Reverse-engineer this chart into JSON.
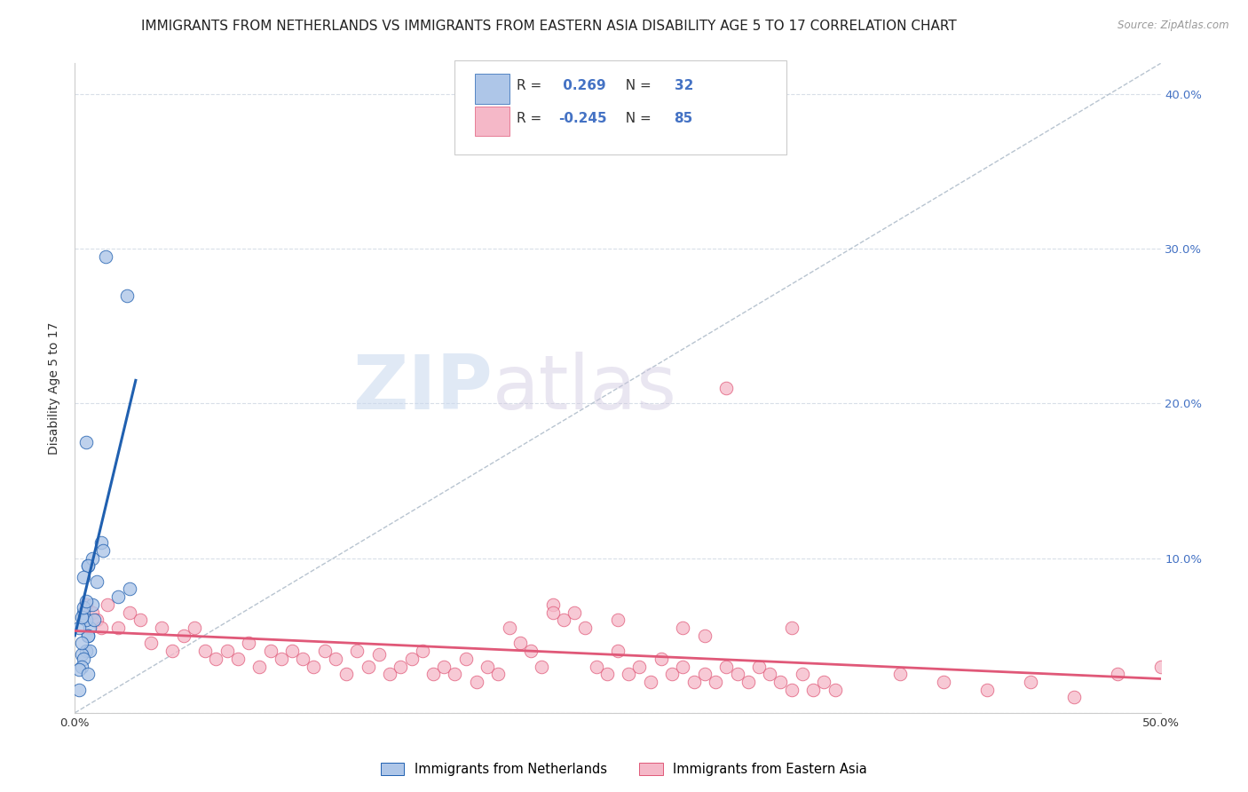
{
  "title": "IMMIGRANTS FROM NETHERLANDS VS IMMIGRANTS FROM EASTERN ASIA DISABILITY AGE 5 TO 17 CORRELATION CHART",
  "source": "Source: ZipAtlas.com",
  "ylabel": "Disability Age 5 to 17",
  "xlim": [
    0.0,
    0.5
  ],
  "ylim": [
    0.0,
    0.42
  ],
  "x_ticks": [
    0.0,
    0.1,
    0.2,
    0.3,
    0.4,
    0.5
  ],
  "x_tick_labels": [
    "0.0%",
    "",
    "",
    "",
    "",
    "50.0%"
  ],
  "y_ticks": [
    0.0,
    0.1,
    0.2,
    0.3,
    0.4
  ],
  "y_tick_labels": [
    "",
    "10.0%",
    "20.0%",
    "30.0%",
    "40.0%"
  ],
  "R_blue": 0.269,
  "N_blue": 32,
  "R_pink": -0.245,
  "N_pink": 85,
  "blue_color": "#aec6e8",
  "blue_line_color": "#2060b0",
  "pink_color": "#f5b8c8",
  "pink_line_color": "#e05878",
  "watermark_zip": "ZIP",
  "watermark_atlas": "atlas",
  "legend_blue_label": "Immigrants from Netherlands",
  "legend_pink_label": "Immigrants from Eastern Asia",
  "blue_scatter_x": [
    0.014,
    0.024,
    0.005,
    0.006,
    0.008,
    0.01,
    0.012,
    0.006,
    0.007,
    0.004,
    0.005,
    0.006,
    0.02,
    0.025,
    0.008,
    0.009,
    0.006,
    0.005,
    0.007,
    0.003,
    0.004,
    0.003,
    0.002,
    0.006,
    0.003,
    0.002,
    0.003,
    0.004,
    0.005,
    0.013,
    0.002,
    0.004
  ],
  "blue_scatter_y": [
    0.295,
    0.27,
    0.175,
    0.095,
    0.1,
    0.085,
    0.11,
    0.095,
    0.055,
    0.065,
    0.06,
    0.05,
    0.075,
    0.08,
    0.07,
    0.06,
    0.05,
    0.04,
    0.04,
    0.038,
    0.035,
    0.03,
    0.028,
    0.025,
    0.045,
    0.055,
    0.062,
    0.068,
    0.072,
    0.105,
    0.015,
    0.088
  ],
  "pink_scatter_x": [
    0.005,
    0.008,
    0.01,
    0.012,
    0.015,
    0.02,
    0.025,
    0.03,
    0.035,
    0.04,
    0.045,
    0.05,
    0.055,
    0.06,
    0.065,
    0.07,
    0.075,
    0.08,
    0.085,
    0.09,
    0.095,
    0.1,
    0.105,
    0.11,
    0.115,
    0.12,
    0.125,
    0.13,
    0.135,
    0.14,
    0.145,
    0.15,
    0.155,
    0.16,
    0.165,
    0.17,
    0.175,
    0.18,
    0.185,
    0.19,
    0.195,
    0.2,
    0.205,
    0.21,
    0.215,
    0.22,
    0.225,
    0.23,
    0.235,
    0.24,
    0.245,
    0.25,
    0.255,
    0.26,
    0.265,
    0.27,
    0.275,
    0.28,
    0.285,
    0.29,
    0.295,
    0.3,
    0.305,
    0.31,
    0.315,
    0.32,
    0.325,
    0.33,
    0.335,
    0.34,
    0.345,
    0.35,
    0.38,
    0.4,
    0.42,
    0.44,
    0.46,
    0.48,
    0.5,
    0.3,
    0.25,
    0.28,
    0.33,
    0.29,
    0.22
  ],
  "pink_scatter_y": [
    0.07,
    0.065,
    0.06,
    0.055,
    0.07,
    0.055,
    0.065,
    0.06,
    0.045,
    0.055,
    0.04,
    0.05,
    0.055,
    0.04,
    0.035,
    0.04,
    0.035,
    0.045,
    0.03,
    0.04,
    0.035,
    0.04,
    0.035,
    0.03,
    0.04,
    0.035,
    0.025,
    0.04,
    0.03,
    0.038,
    0.025,
    0.03,
    0.035,
    0.04,
    0.025,
    0.03,
    0.025,
    0.035,
    0.02,
    0.03,
    0.025,
    0.055,
    0.045,
    0.04,
    0.03,
    0.07,
    0.06,
    0.065,
    0.055,
    0.03,
    0.025,
    0.04,
    0.025,
    0.03,
    0.02,
    0.035,
    0.025,
    0.03,
    0.02,
    0.025,
    0.02,
    0.03,
    0.025,
    0.02,
    0.03,
    0.025,
    0.02,
    0.015,
    0.025,
    0.015,
    0.02,
    0.015,
    0.025,
    0.02,
    0.015,
    0.02,
    0.01,
    0.025,
    0.03,
    0.21,
    0.06,
    0.055,
    0.055,
    0.05,
    0.065
  ],
  "dashed_line_x": [
    0.0,
    0.5
  ],
  "dashed_line_y": [
    0.0,
    0.42
  ],
  "blue_trend_x": [
    0.0,
    0.028
  ],
  "blue_trend_y": [
    0.05,
    0.215
  ],
  "pink_trend_x": [
    0.0,
    0.5
  ],
  "pink_trend_y": [
    0.053,
    0.022
  ],
  "background_color": "#ffffff",
  "grid_color": "#d8dfe8",
  "right_axis_color": "#4472c4",
  "label_color": "#333333",
  "title_fontsize": 11,
  "axis_label_fontsize": 10,
  "tick_fontsize": 9.5
}
